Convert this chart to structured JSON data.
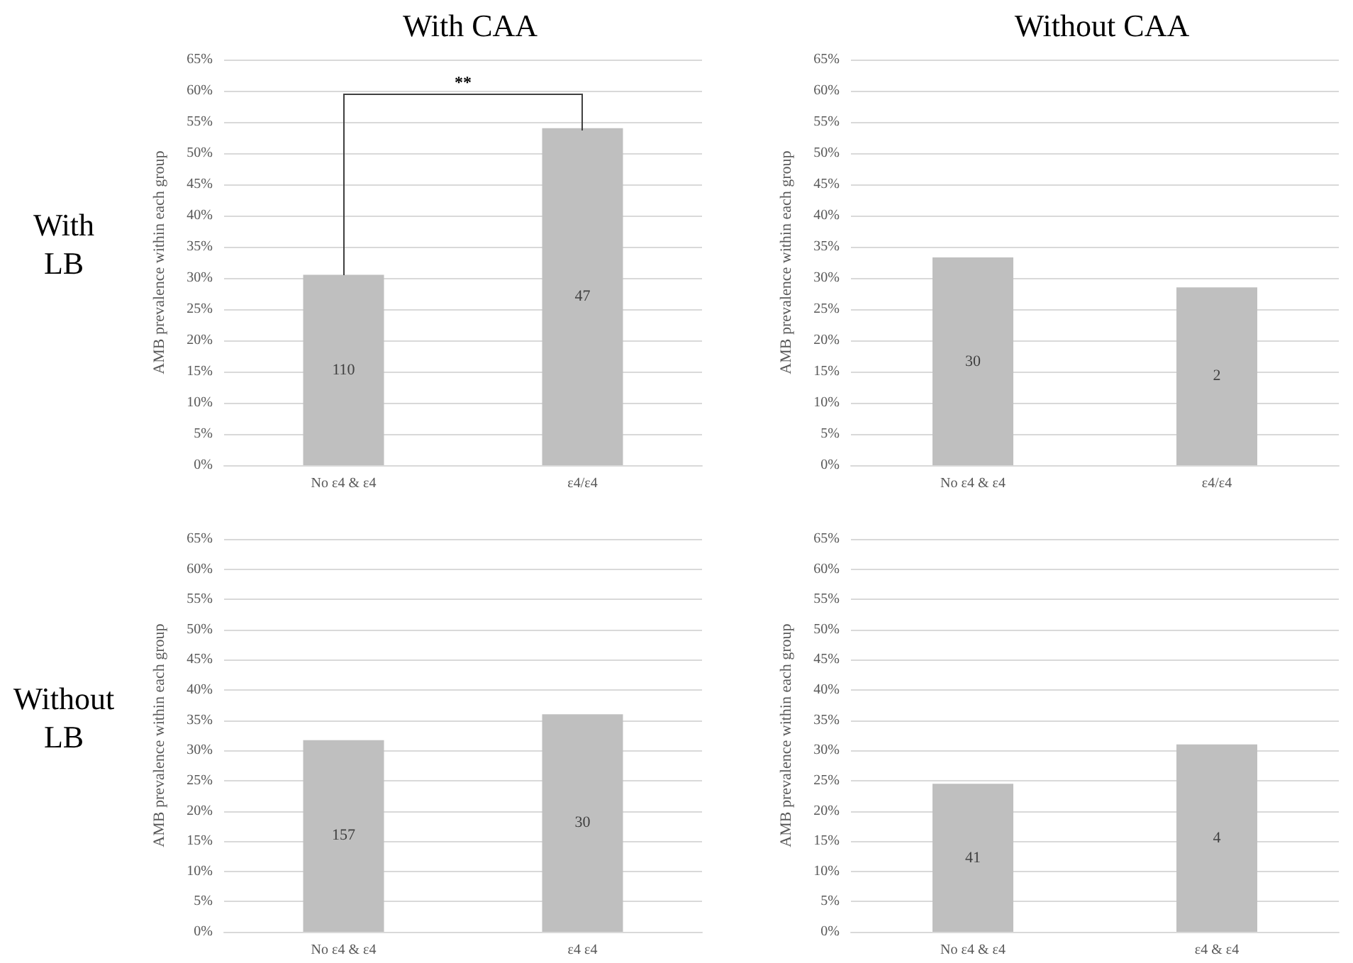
{
  "chart_data": [
    {
      "type": "bar",
      "title": "With CAA",
      "ylabel": "AMB prevalence within each group",
      "categories": [
        "No ε4 & ε4",
        "ε4/ε4"
      ],
      "values": [
        30.5,
        54
      ],
      "color": "#bfbfbf",
      "ylim": [
        0,
        65
      ],
      "yticks": [
        {
          "value": 0,
          "label": "0%"
        },
        {
          "value": 5,
          "label": "5%"
        },
        {
          "value": 10,
          "label": "10%"
        },
        {
          "value": 15,
          "label": "15%"
        },
        {
          "value": 20,
          "label": "20%"
        },
        {
          "value": 25,
          "label": "25%"
        },
        {
          "value": 30,
          "label": "30%"
        },
        {
          "value": 35,
          "label": "35%"
        },
        {
          "value": 40,
          "label": "40%"
        },
        {
          "value": 45,
          "label": "45%"
        },
        {
          "value": 50,
          "label": "50%"
        },
        {
          "value": 55,
          "label": "55%"
        },
        {
          "value": 60,
          "label": "60%"
        },
        {
          "value": 65,
          "label": "65%"
        }
      ],
      "grid": "y",
      "annotations": [
        "With LB",
        "**",
        "110",
        "47"
      ]
    },
    {
      "type": "bar",
      "title": "Without CAA",
      "ylabel": "AMB prevalence within each group",
      "categories": [
        "No ε4 & ε4",
        "ε4/ε4"
      ],
      "values": [
        33.3,
        28.5
      ],
      "color": "#bfbfbf",
      "ylim": [
        0,
        65
      ],
      "yticks": [
        {
          "value": 0,
          "label": "0%"
        },
        {
          "value": 5,
          "label": "5%"
        },
        {
          "value": 10,
          "label": "10%"
        },
        {
          "value": 15,
          "label": "15%"
        },
        {
          "value": 20,
          "label": "20%"
        },
        {
          "value": 25,
          "label": "25%"
        },
        {
          "value": 30,
          "label": "30%"
        },
        {
          "value": 35,
          "label": "35%"
        },
        {
          "value": 40,
          "label": "40%"
        },
        {
          "value": 45,
          "label": "45%"
        },
        {
          "value": 50,
          "label": "50%"
        },
        {
          "value": 55,
          "label": "55%"
        },
        {
          "value": 60,
          "label": "60%"
        },
        {
          "value": 65,
          "label": "65%"
        }
      ],
      "grid": "y",
      "annotations": [
        "30",
        "2"
      ]
    },
    {
      "type": "bar",
      "ylabel": "AMB prevalence within each group",
      "categories": [
        "No ε4 & ε4",
        "ε4 ε4"
      ],
      "values": [
        31.7,
        36
      ],
      "color": "#bfbfbf",
      "ylim": [
        0,
        65
      ],
      "yticks": [
        {
          "value": 0,
          "label": "0%"
        },
        {
          "value": 5,
          "label": "5%"
        },
        {
          "value": 10,
          "label": "10%"
        },
        {
          "value": 15,
          "label": "15%"
        },
        {
          "value": 20,
          "label": "20%"
        },
        {
          "value": 25,
          "label": "25%"
        },
        {
          "value": 30,
          "label": "30%"
        },
        {
          "value": 35,
          "label": "35%"
        },
        {
          "value": 40,
          "label": "40%"
        },
        {
          "value": 45,
          "label": "45%"
        },
        {
          "value": 50,
          "label": "50%"
        },
        {
          "value": 55,
          "label": "55%"
        },
        {
          "value": 60,
          "label": "60%"
        },
        {
          "value": 65,
          "label": "65%"
        }
      ],
      "grid": "y",
      "annotations": [
        "Without LB",
        "157",
        "30"
      ]
    },
    {
      "type": "bar",
      "ylabel": "AMB prevalence within each group",
      "categories": [
        "No ε4 & ε4",
        "ε4 & ε4"
      ],
      "values": [
        24.5,
        31
      ],
      "color": "#bfbfbf",
      "ylim": [
        0,
        65
      ],
      "yticks": [
        {
          "value": 0,
          "label": "0%"
        },
        {
          "value": 5,
          "label": "5%"
        },
        {
          "value": 10,
          "label": "10%"
        },
        {
          "value": 15,
          "label": "15%"
        },
        {
          "value": 20,
          "label": "20%"
        },
        {
          "value": 25,
          "label": "25%"
        },
        {
          "value": 30,
          "label": "30%"
        },
        {
          "value": 35,
          "label": "35%"
        },
        {
          "value": 40,
          "label": "40%"
        },
        {
          "value": 45,
          "label": "45%"
        },
        {
          "value": 50,
          "label": "50%"
        },
        {
          "value": 55,
          "label": "55%"
        },
        {
          "value": 60,
          "label": "60%"
        },
        {
          "value": 65,
          "label": "65%"
        }
      ],
      "grid": "y",
      "annotations": [
        "41",
        "4"
      ]
    }
  ]
}
